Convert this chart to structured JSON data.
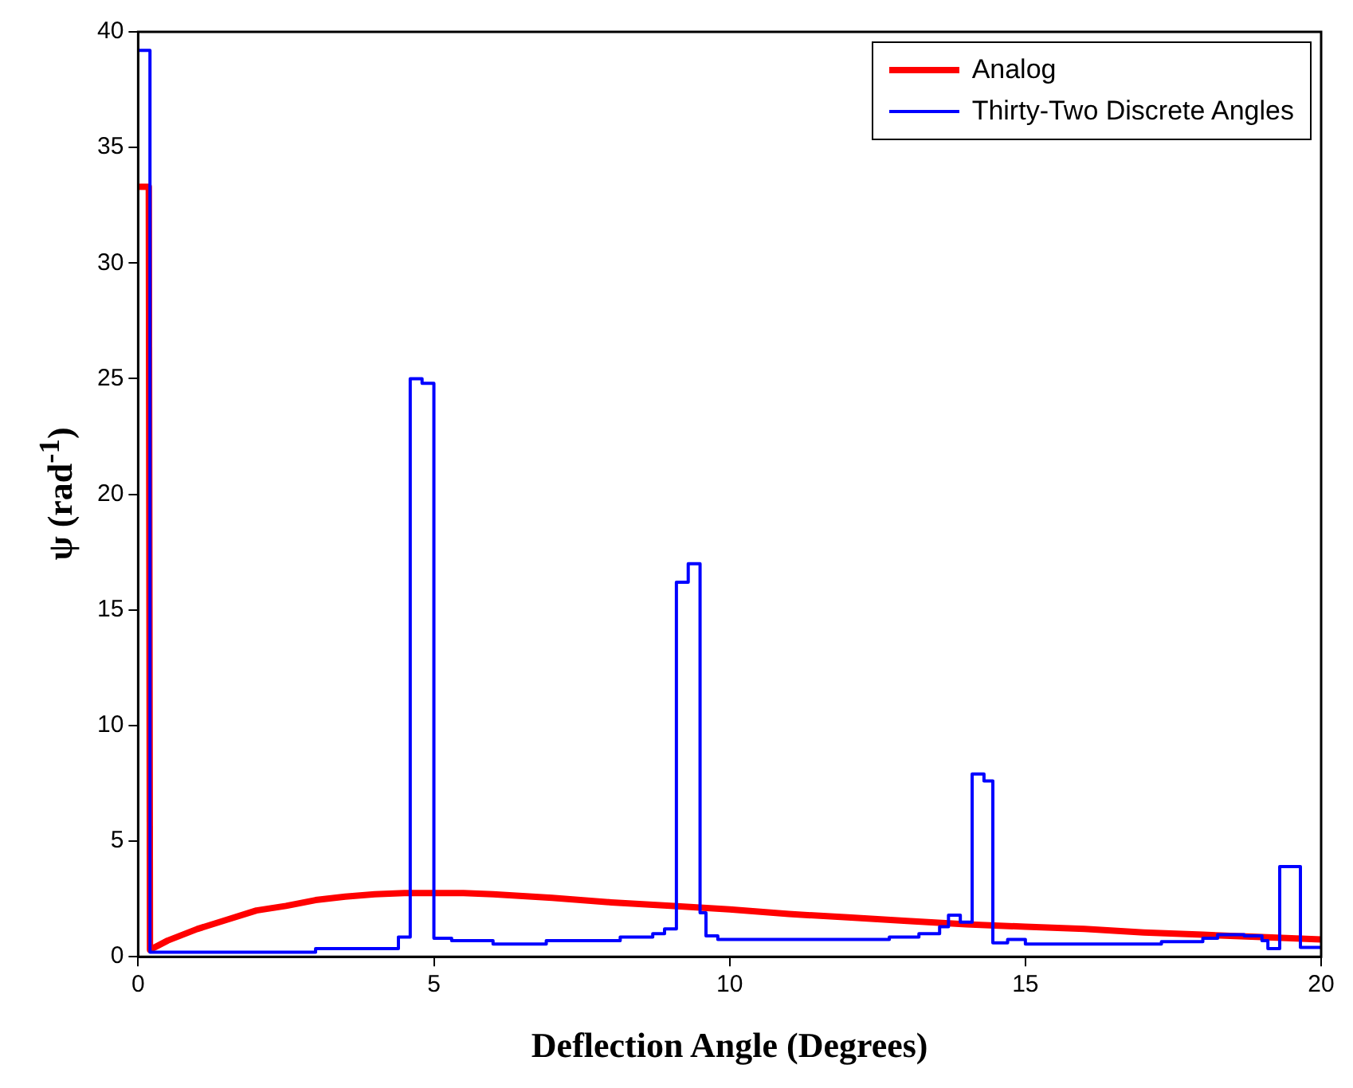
{
  "chart_data": {
    "type": "line",
    "xlabel": "Deflection Angle (Degrees)",
    "ylabel": "ψ (rad$^{-1}$)",
    "xlim": [
      0,
      20
    ],
    "xticks": [
      0,
      5,
      10,
      15,
      20
    ],
    "ylim": [
      0,
      40
    ],
    "yticks": [
      0,
      5,
      10,
      15,
      20,
      25,
      30,
      35,
      40
    ],
    "grid": false,
    "legend": "top right",
    "marker": "none",
    "line_style": "solid",
    "series": [
      {
        "name": "Analog",
        "color": "#ff0000",
        "x": [
          0,
          0.18,
          0.2,
          0.5,
          1,
          1.5,
          2,
          2.5,
          3,
          3.5,
          4,
          4.5,
          5,
          5.5,
          6,
          7,
          8,
          9,
          10,
          11,
          12,
          13,
          14,
          15,
          16,
          17,
          18,
          19,
          20
        ],
        "values": [
          33.3,
          33.3,
          0.3,
          0.7,
          1.2,
          1.6,
          2.0,
          2.2,
          2.45,
          2.6,
          2.7,
          2.75,
          2.75,
          2.75,
          2.7,
          2.55,
          2.35,
          2.2,
          2.05,
          1.85,
          1.7,
          1.55,
          1.4,
          1.3,
          1.2,
          1.05,
          0.95,
          0.85,
          0.75
        ]
      },
      {
        "name": "Thirty-Two Discrete Angles",
        "type": "step",
        "color": "#0000ff",
        "x": [
          0,
          0.2,
          3.0,
          4.4,
          4.6,
          4.8,
          5.0,
          5.3,
          6.0,
          6.9,
          8.15,
          8.7,
          8.9,
          9.1,
          9.3,
          9.5,
          9.6,
          9.8,
          12.7,
          13.2,
          13.55,
          13.7,
          13.9,
          14.1,
          14.3,
          14.45,
          14.7,
          15.0,
          17.3,
          18.0,
          18.25,
          18.7,
          19.0,
          19.1,
          19.3,
          19.65,
          20
        ],
        "values": [
          39.2,
          0.2,
          0.35,
          0.85,
          25.0,
          24.8,
          0.8,
          0.7,
          0.55,
          0.7,
          0.85,
          1.0,
          1.2,
          16.2,
          17.0,
          1.9,
          0.9,
          0.75,
          0.85,
          1.0,
          1.3,
          1.8,
          1.5,
          7.9,
          7.6,
          0.6,
          0.75,
          0.55,
          0.65,
          0.8,
          0.95,
          0.9,
          0.7,
          0.35,
          3.9,
          0.4,
          0.4
        ]
      }
    ]
  }
}
